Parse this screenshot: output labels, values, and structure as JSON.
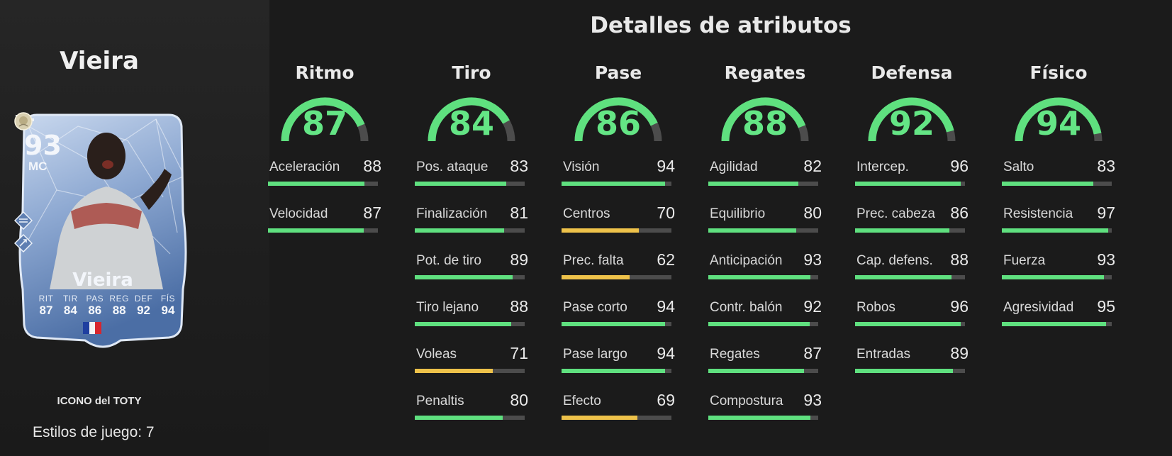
{
  "left_panel": {
    "player_name": "Vieira",
    "card": {
      "rating": "93",
      "position": "MC",
      "name": "Vieira",
      "side_icons": [
        "playstyle-icon",
        "playstyle-icon"
      ],
      "stats": [
        {
          "label": "RIT",
          "value": "87"
        },
        {
          "label": "TIR",
          "value": "84"
        },
        {
          "label": "PAS",
          "value": "86"
        },
        {
          "label": "REG",
          "value": "88"
        },
        {
          "label": "DEF",
          "value": "92"
        },
        {
          "label": "FÍS",
          "value": "94"
        }
      ],
      "nation": "france-flag-icon",
      "club": "icons-club-badge-icon",
      "colors": {
        "card_light": "#c9d8ee",
        "card_mid": "#8ea9d2",
        "card_dark": "#4b6ea5"
      }
    },
    "card_type": "ICONO del TOTY",
    "play_styles": "Estilos de juego: 7"
  },
  "right_panel": {
    "title": "Detalles de atributos",
    "colors": {
      "good": "#5fe07f",
      "medium": "#eec24a",
      "track": "#4c4c4c"
    },
    "categories": [
      {
        "name": "Ritmo",
        "value": 87,
        "value_text": "87",
        "stats": [
          {
            "label": "Aceleración",
            "value": 88,
            "value_text": "88"
          },
          {
            "label": "Velocidad",
            "value": 87,
            "value_text": "87"
          }
        ]
      },
      {
        "name": "Tiro",
        "value": 84,
        "value_text": "84",
        "stats": [
          {
            "label": "Pos. ataque",
            "value": 83,
            "value_text": "83"
          },
          {
            "label": "Finalización",
            "value": 81,
            "value_text": "81"
          },
          {
            "label": "Pot. de tiro",
            "value": 89,
            "value_text": "89"
          },
          {
            "label": "Tiro lejano",
            "value": 88,
            "value_text": "88"
          },
          {
            "label": "Voleas",
            "value": 71,
            "value_text": "71"
          },
          {
            "label": "Penaltis",
            "value": 80,
            "value_text": "80"
          }
        ]
      },
      {
        "name": "Pase",
        "value": 86,
        "value_text": "86",
        "stats": [
          {
            "label": "Visión",
            "value": 94,
            "value_text": "94"
          },
          {
            "label": "Centros",
            "value": 70,
            "value_text": "70"
          },
          {
            "label": "Prec. falta",
            "value": 62,
            "value_text": "62"
          },
          {
            "label": "Pase corto",
            "value": 94,
            "value_text": "94"
          },
          {
            "label": "Pase largo",
            "value": 94,
            "value_text": "94"
          },
          {
            "label": "Efecto",
            "value": 69,
            "value_text": "69"
          }
        ]
      },
      {
        "name": "Regates",
        "value": 88,
        "value_text": "88",
        "stats": [
          {
            "label": "Agilidad",
            "value": 82,
            "value_text": "82"
          },
          {
            "label": "Equilibrio",
            "value": 80,
            "value_text": "80"
          },
          {
            "label": "Anticipación",
            "value": 93,
            "value_text": "93"
          },
          {
            "label": "Contr. balón",
            "value": 92,
            "value_text": "92"
          },
          {
            "label": "Regates",
            "value": 87,
            "value_text": "87"
          },
          {
            "label": "Compostura",
            "value": 93,
            "value_text": "93"
          }
        ]
      },
      {
        "name": "Defensa",
        "value": 92,
        "value_text": "92",
        "stats": [
          {
            "label": "Intercep.",
            "value": 96,
            "value_text": "96"
          },
          {
            "label": "Prec. cabeza",
            "value": 86,
            "value_text": "86"
          },
          {
            "label": "Cap. defens.",
            "value": 88,
            "value_text": "88"
          },
          {
            "label": "Robos",
            "value": 96,
            "value_text": "96"
          },
          {
            "label": "Entradas",
            "value": 89,
            "value_text": "89"
          }
        ]
      },
      {
        "name": "Físico",
        "value": 94,
        "value_text": "94",
        "stats": [
          {
            "label": "Salto",
            "value": 83,
            "value_text": "83"
          },
          {
            "label": "Resistencia",
            "value": 97,
            "value_text": "97"
          },
          {
            "label": "Fuerza",
            "value": 93,
            "value_text": "93"
          },
          {
            "label": "Agresividad",
            "value": 95,
            "value_text": "95"
          }
        ]
      }
    ]
  }
}
